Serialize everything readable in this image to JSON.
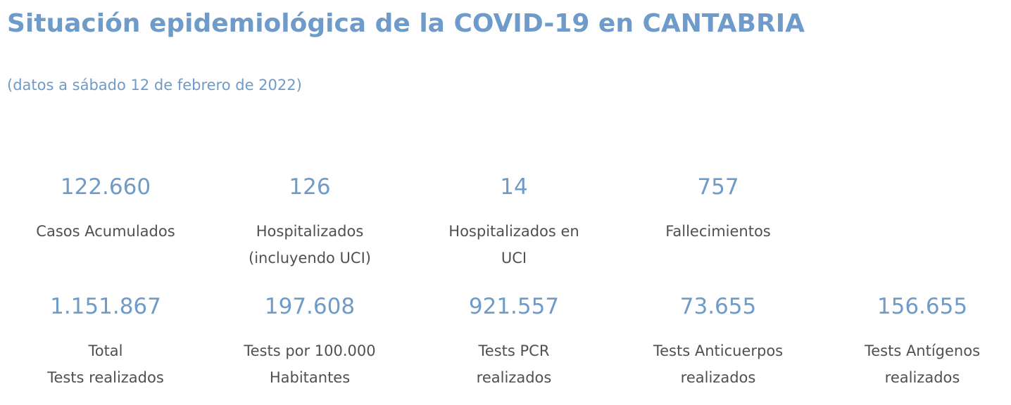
{
  "header": {
    "title": "Situación epidemiológica de la COVID-19 en CANTABRIA",
    "subtitle": "(datos a sábado 12 de febrero de 2022)"
  },
  "colors": {
    "accent": "#6e9bc9",
    "label_text": "#505050",
    "background": "#ffffff"
  },
  "stats_row1": [
    {
      "value": "122.660",
      "label_lines": [
        "Casos Acumulados"
      ]
    },
    {
      "value": "126",
      "label_lines": [
        "Hospitalizados",
        "(incluyendo UCI)"
      ]
    },
    {
      "value": "14",
      "label_lines": [
        "Hospitalizados en",
        "UCI"
      ]
    },
    {
      "value": "757",
      "label_lines": [
        "Fallecimientos"
      ]
    }
  ],
  "stats_row2": [
    {
      "value": "1.151.867",
      "label_lines": [
        "Total",
        "Tests realizados"
      ]
    },
    {
      "value": "197.608",
      "label_lines": [
        "Tests por 100.000",
        "Habitantes"
      ]
    },
    {
      "value": "921.557",
      "label_lines": [
        "Tests PCR",
        "realizados"
      ]
    },
    {
      "value": "73.655",
      "label_lines": [
        "Tests Anticuerpos",
        "realizados"
      ]
    },
    {
      "value": "156.655",
      "label_lines": [
        "Tests Antígenos",
        "realizados"
      ]
    }
  ]
}
